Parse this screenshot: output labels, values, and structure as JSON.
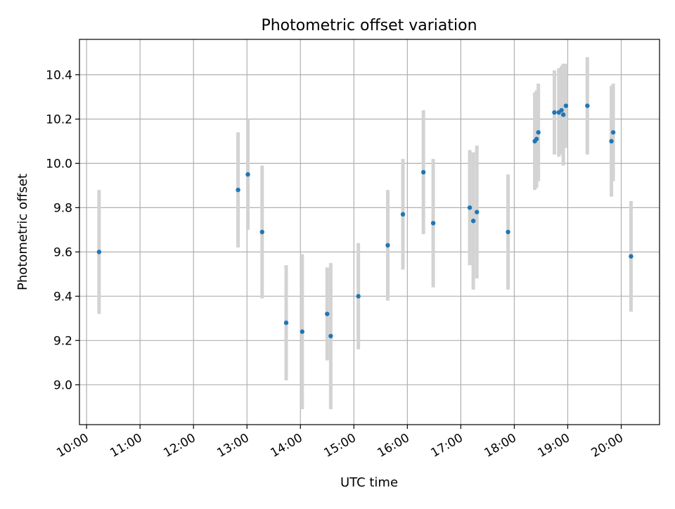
{
  "chart_data": {
    "type": "scatter",
    "title": "Photometric offset variation",
    "xlabel": "UTC time",
    "ylabel": "Photometric offset",
    "xlim": [
      "09:52",
      "20:43"
    ],
    "ylim": [
      8.82,
      10.56
    ],
    "x_ticks": [
      "10:00",
      "11:00",
      "12:00",
      "13:00",
      "14:00",
      "15:00",
      "16:00",
      "17:00",
      "18:00",
      "19:00",
      "20:00"
    ],
    "y_ticks": [
      "9.0",
      "9.2",
      "9.4",
      "9.6",
      "9.8",
      "10.0",
      "10.2",
      "10.4"
    ],
    "grid": true,
    "marker_color": "#1f77b4",
    "errorbar_color": "#d3d3d3",
    "points": [
      {
        "t": "10:14",
        "y": 9.6,
        "err": 0.28
      },
      {
        "t": "12:50",
        "y": 9.88,
        "err": 0.26
      },
      {
        "t": "13:01",
        "y": 9.95,
        "err": 0.25
      },
      {
        "t": "13:17",
        "y": 9.69,
        "err": 0.3
      },
      {
        "t": "13:44",
        "y": 9.28,
        "err": 0.26
      },
      {
        "t": "14:02",
        "y": 9.24,
        "err": 0.35
      },
      {
        "t": "14:30",
        "y": 9.32,
        "err": 0.21
      },
      {
        "t": "14:34",
        "y": 9.22,
        "err": 0.33
      },
      {
        "t": "15:05",
        "y": 9.4,
        "err": 0.24
      },
      {
        "t": "15:38",
        "y": 9.63,
        "err": 0.25
      },
      {
        "t": "15:55",
        "y": 9.77,
        "err": 0.25
      },
      {
        "t": "16:18",
        "y": 9.96,
        "err": 0.28
      },
      {
        "t": "16:29",
        "y": 9.73,
        "err": 0.29
      },
      {
        "t": "17:10",
        "y": 9.8,
        "err": 0.26
      },
      {
        "t": "17:14",
        "y": 9.74,
        "err": 0.31
      },
      {
        "t": "17:18",
        "y": 9.78,
        "err": 0.3
      },
      {
        "t": "17:53",
        "y": 9.69,
        "err": 0.26
      },
      {
        "t": "18:23",
        "y": 10.1,
        "err": 0.22
      },
      {
        "t": "18:25",
        "y": 10.11,
        "err": 0.22
      },
      {
        "t": "18:27",
        "y": 10.14,
        "err": 0.22
      },
      {
        "t": "18:45",
        "y": 10.23,
        "err": 0.19
      },
      {
        "t": "18:50",
        "y": 10.23,
        "err": 0.2
      },
      {
        "t": "18:53",
        "y": 10.24,
        "err": 0.2
      },
      {
        "t": "18:55",
        "y": 10.22,
        "err": 0.23
      },
      {
        "t": "18:58",
        "y": 10.26,
        "err": 0.19
      },
      {
        "t": "19:22",
        "y": 10.26,
        "err": 0.22
      },
      {
        "t": "19:49",
        "y": 10.1,
        "err": 0.25
      },
      {
        "t": "19:51",
        "y": 10.14,
        "err": 0.22
      },
      {
        "t": "20:11",
        "y": 9.58,
        "err": 0.25
      }
    ]
  }
}
